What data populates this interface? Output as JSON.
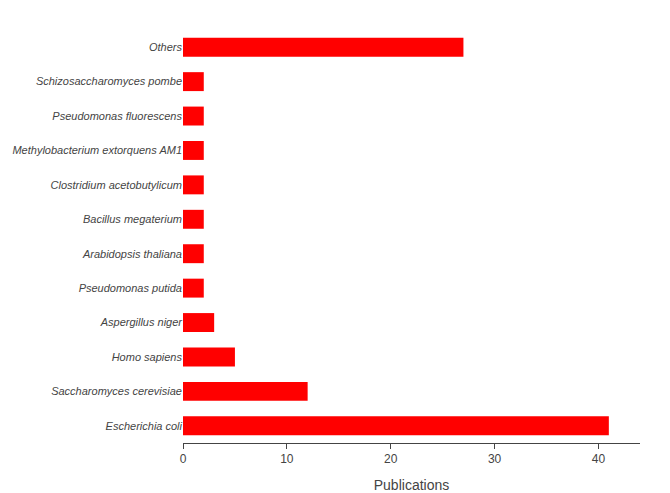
{
  "chart_data": {
    "type": "bar",
    "orientation": "horizontal",
    "categories": [
      "Others",
      "Schizosaccharomyces pombe",
      "Pseudomonas fluorescens",
      "Methylobacterium extorquens AM1",
      "Clostridium acetobutylicum",
      "Bacillus megaterium",
      "Arabidopsis thaliana",
      "Pseudomonas putida",
      "Aspergillus niger",
      "Homo sapiens",
      "Saccharomyces cerevisiae",
      "Escherichia coli"
    ],
    "values": [
      27,
      2,
      2,
      2,
      2,
      2,
      2,
      2,
      3,
      5,
      12,
      41
    ],
    "color": "#ff0000",
    "xlabel": "Publications",
    "xlim": [
      0,
      44
    ],
    "xticks": [
      0,
      10,
      20,
      30,
      40
    ],
    "grid": false
  }
}
